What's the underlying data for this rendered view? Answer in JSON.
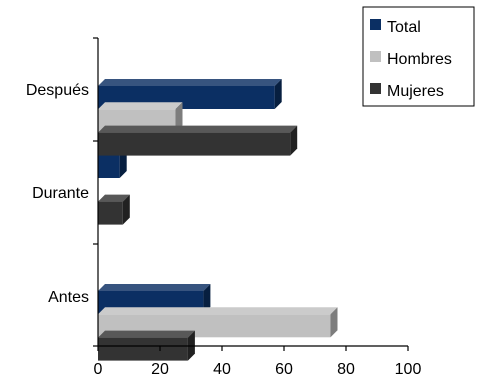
{
  "chart_data": {
    "type": "bar",
    "orientation": "horizontal",
    "style": "3d",
    "categories": [
      "Antes",
      "Durante",
      "Después"
    ],
    "series": [
      {
        "name": "Total",
        "values": [
          34,
          7,
          57
        ],
        "color": "#0b2f63"
      },
      {
        "name": "Hombres",
        "values": [
          75,
          0,
          25
        ],
        "color": "#c0c0c0"
      },
      {
        "name": "Mujeres",
        "values": [
          29,
          8,
          62
        ],
        "color": "#333333"
      }
    ],
    "xticks": [
      "0",
      "20",
      "40",
      "60",
      "80",
      "100"
    ],
    "xlim": [
      0,
      100
    ],
    "title": "",
    "xlabel": "",
    "ylabel": "",
    "grid": false,
    "legend_position": "top-right"
  }
}
